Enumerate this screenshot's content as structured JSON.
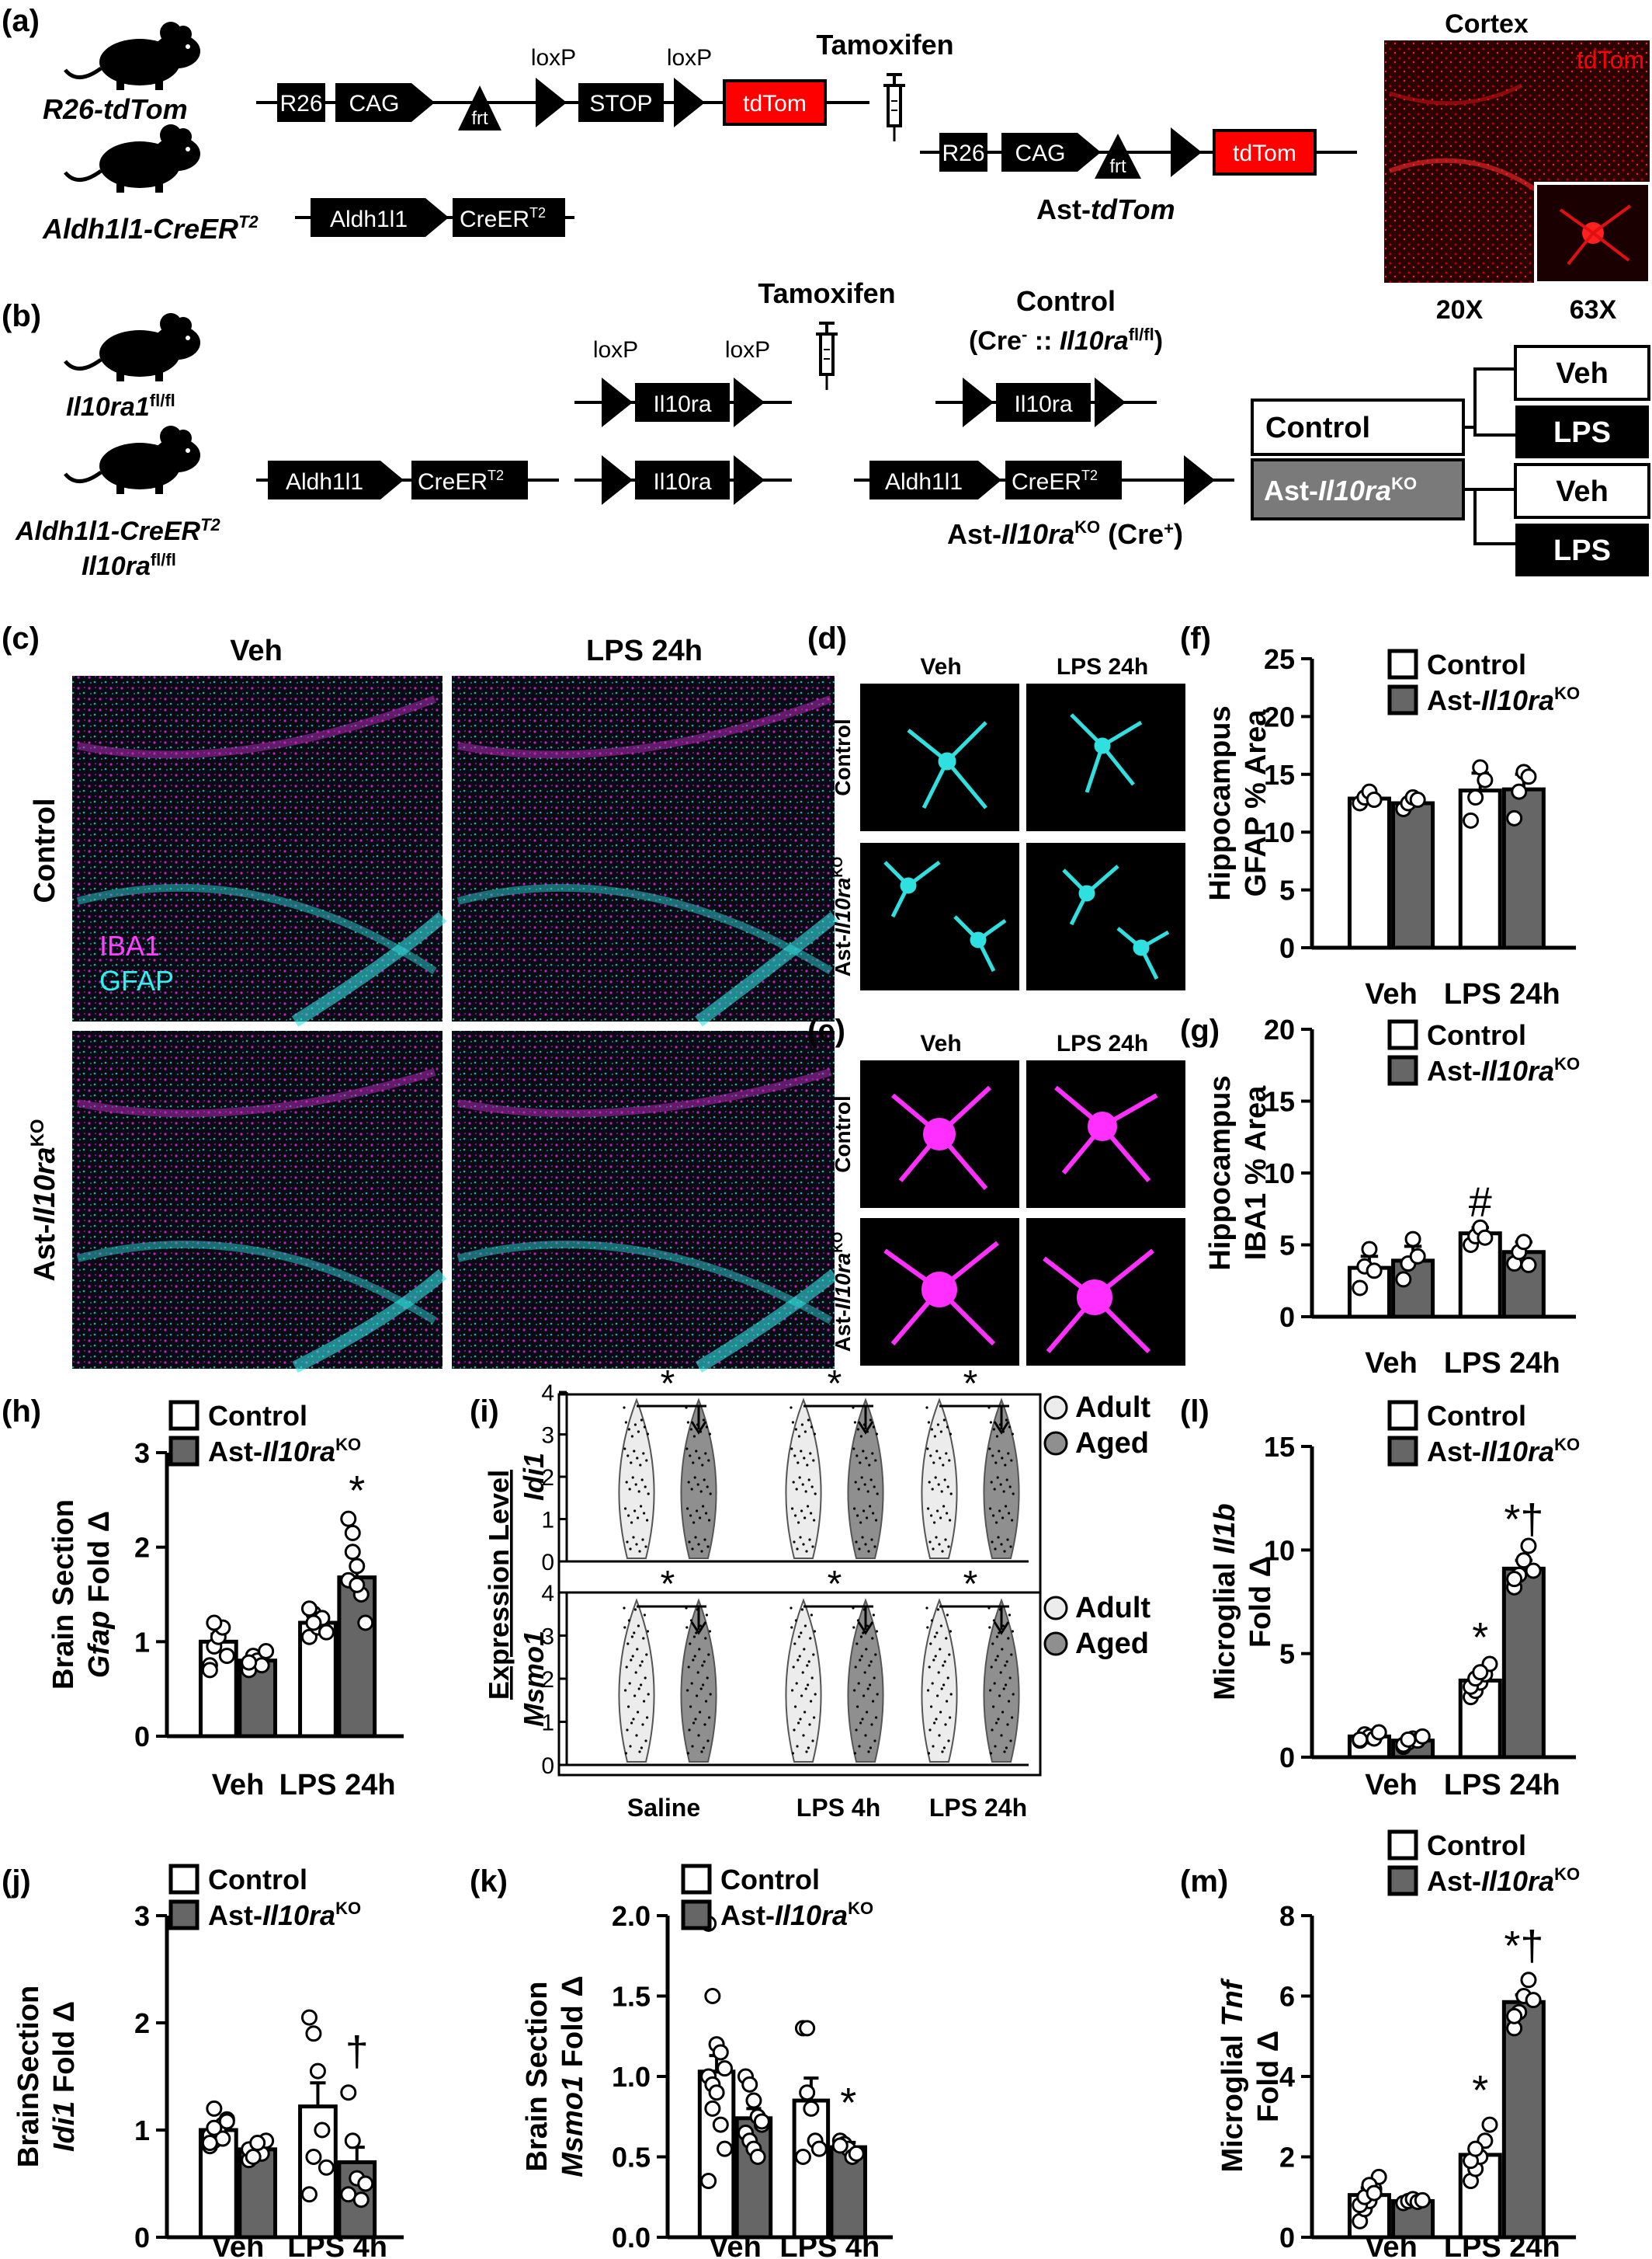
{
  "panel_labels": {
    "a": "(a)",
    "b": "(b)",
    "c": "(c)",
    "d": "(d)",
    "e": "(e)",
    "f": "(f)",
    "g": "(g)",
    "h": "(h)",
    "i": "(i)",
    "j": "(j)",
    "k": "(k)",
    "l": "(l)",
    "m": "(m)"
  },
  "colors": {
    "control_fill": "#ffffff",
    "ko_fill": "#666666",
    "adult_fill": "#ececec",
    "aged_fill": "#8f8f8f",
    "tdtom_red": "#ff0000",
    "gfap": "#19e0e0",
    "iba1": "#ff19ff",
    "cortex_bg": "#2a0000"
  },
  "panel_a": {
    "mouse1": "R26-tdTom",
    "mouse2_base": "Aldh1l1-CreER",
    "mouse2_sup": "T2",
    "boxes": {
      "r26": "R26",
      "cag": "CAG",
      "stop": "STOP",
      "tdtom": "tdTom",
      "aldh": "Aldh1l1",
      "creer": "CreER",
      "creer_sup": "T2"
    },
    "frt": "frt",
    "loxp1": "loxP",
    "loxp2": "loxP",
    "tamoxifen": "Tamoxifen",
    "result_prefix": "Ast-",
    "result_italic": "tdTom",
    "cortex_title": "Cortex",
    "cortex_label": "tdTom",
    "mag1": "20X",
    "mag2": "63X"
  },
  "panel_b": {
    "mouse1_base": "Il10ra1",
    "mouse1_sup": "fl/fl",
    "mouse2_line1_base": "Aldh1l1-CreER",
    "mouse2_line1_sup": "T2",
    "mouse2_line2_base": "Il10ra",
    "mouse2_line2_sup": "fl/fl",
    "aldh": "Aldh1l1",
    "creer": "CreER",
    "creer_sup": "T2",
    "il10ra": "Il10ra",
    "loxp1": "loxP",
    "loxp2": "loxP",
    "tamoxifen": "Tamoxifen",
    "control_title": "Control",
    "control_sub_a": "(Cre",
    "control_sub_minus": "-",
    "control_sub_b": " :: ",
    "control_sub_it": "Il10ra",
    "control_sub_sup": "fl/fl",
    "control_sub_c": ")",
    "ko_prefix": "Ast-",
    "ko_it": "Il10ra",
    "ko_sup": "KO",
    "ko_suffix_a": " (Cre",
    "ko_suffix_plus": "+",
    "ko_suffix_b": ")",
    "group_control": "Control",
    "group_ko_prefix": "Ast-",
    "group_ko_it": "Il10ra",
    "group_ko_sup": "KO",
    "treat": [
      "Veh",
      "LPS",
      "Veh",
      "LPS"
    ]
  },
  "panel_c": {
    "col1": "Veh",
    "col2": "LPS 24h",
    "row1": "Control",
    "row2_prefix": "Ast-",
    "row2_it": "Il10ra",
    "row2_sup": "KO",
    "stain1": "IBA1",
    "stain2": "GFAP"
  },
  "panel_d": {
    "col1": "Veh",
    "col2": "LPS 24h",
    "row1": "Control",
    "row2_prefix": "Ast-",
    "row2_it": "Il10ra",
    "row2_sup": "KO"
  },
  "panel_e": {
    "col1": "Veh",
    "col2": "LPS 24h",
    "row1": "Control",
    "row2_prefix": "Ast-",
    "row2_it": "Il10ra",
    "row2_sup": "KO"
  },
  "legend": {
    "control": "Control",
    "ko_prefix": "Ast-",
    "ko_it": "Il10ra",
    "ko_sup": "KO",
    "adult": "Adult",
    "aged": "Aged"
  },
  "panel_i": {
    "ylabel": "Expression Level",
    "gene1": "Idi1",
    "gene2": "Msmo1",
    "groups": [
      "Saline",
      "LPS 4h",
      "LPS 24h"
    ],
    "star": "*"
  },
  "chart_data": [
    {
      "id": "f",
      "type": "bar",
      "ylabel_line1": "Hippocampus",
      "ylabel_line2": "GFAP % Area",
      "ylim": [
        0,
        25
      ],
      "yticks": [
        "0",
        "5",
        "10",
        "15",
        "20",
        "25"
      ],
      "categories": [
        "Veh",
        "LPS 24h"
      ],
      "series": [
        {
          "name": "Control",
          "values": [
            12.9,
            13.6
          ],
          "sem": [
            0.4,
            1.5
          ]
        },
        {
          "name": "Ast-Il10raKO",
          "values": [
            12.5,
            13.7
          ],
          "sem": [
            0.3,
            1.3
          ]
        }
      ],
      "points": [
        [
          [
            12.5,
            13.0,
            13.5,
            12.8
          ],
          [
            11.0,
            13.0,
            15.6,
            14.5
          ]
        ],
        [
          [
            12.0,
            12.5,
            13.0,
            12.8
          ],
          [
            11.2,
            13.5,
            15.2,
            14.8
          ]
        ]
      ],
      "annotations": []
    },
    {
      "id": "g",
      "type": "bar",
      "ylabel_line1": "Hippocampus",
      "ylabel_line2": "IBA1 % Area",
      "ylim": [
        0,
        20
      ],
      "yticks": [
        "0",
        "5",
        "10",
        "15",
        "20"
      ],
      "categories": [
        "Veh",
        "LPS 24h"
      ],
      "series": [
        {
          "name": "Control",
          "values": [
            3.4,
            5.8
          ],
          "sem": [
            0.8,
            0.4
          ]
        },
        {
          "name": "Ast-Il10raKO",
          "values": [
            3.9,
            4.5
          ],
          "sem": [
            1.0,
            0.7
          ]
        }
      ],
      "points": [
        [
          [
            2.0,
            3.5,
            4.7,
            3.2
          ],
          [
            5.0,
            5.6,
            6.2,
            5.5
          ]
        ],
        [
          [
            2.6,
            3.7,
            5.4,
            4.2
          ],
          [
            3.7,
            4.5,
            5.2,
            3.6
          ]
        ]
      ],
      "annotations": [
        {
          "text": "#",
          "group": 1,
          "series": 0,
          "value": 7.0
        }
      ]
    },
    {
      "id": "h",
      "type": "bar",
      "ylabel_line1": "Brain Section",
      "ylabel_line2_it": "Gfap",
      "ylabel_line2_rest": " Fold Δ",
      "ylim": [
        0,
        3
      ],
      "yticks": [
        "0",
        "1",
        "2",
        "3"
      ],
      "categories": [
        "Veh",
        "LPS 24h"
      ],
      "series": [
        {
          "name": "Control",
          "values": [
            1.0,
            1.2
          ],
          "sem": [
            0.08,
            0.06
          ]
        },
        {
          "name": "Ast-Il10raKO",
          "values": [
            0.8,
            1.68
          ],
          "sem": [
            0.04,
            0.12
          ]
        }
      ],
      "points": [
        [
          [
            0.75,
            0.95,
            1.05,
            1.15,
            0.85,
            0.7,
            1.2
          ],
          [
            1.05,
            1.3,
            1.15,
            1.25,
            1.1,
            1.35,
            1.2
          ]
        ],
        [
          [
            0.7,
            0.85,
            0.8,
            0.75,
            0.9,
            0.78
          ],
          [
            2.3,
            2.15,
            1.8,
            1.5,
            1.2,
            1.65,
            1.95,
            1.6
          ]
        ]
      ],
      "annotations": [
        {
          "text": "*",
          "group": 1,
          "series": 1,
          "value": 2.45
        }
      ]
    },
    {
      "id": "j",
      "type": "bar",
      "ylabel_line1": "BrainSection",
      "ylabel_line2_it": "Idi1",
      "ylabel_line2_rest": " Fold Δ",
      "ylim": [
        0,
        3
      ],
      "yticks": [
        "0",
        "1",
        "2",
        "3"
      ],
      "categories": [
        "Veh",
        "LPS 4h"
      ],
      "series": [
        {
          "name": "Control",
          "values": [
            1.0,
            1.22
          ],
          "sem": [
            0.04,
            0.22
          ]
        },
        {
          "name": "Ast-Il10raKO",
          "values": [
            0.82,
            0.7
          ],
          "sem": [
            0.03,
            0.14
          ]
        }
      ],
      "points": [
        [
          [
            0.85,
            0.9,
            1.0,
            1.05,
            1.1,
            0.95,
            1.2,
            1.0,
            0.92,
            1.08,
            0.88,
            1.02
          ],
          [
            2.05,
            1.9,
            1.55,
            1.0,
            0.65,
            0.4,
            0.75
          ]
        ],
        [
          [
            0.72,
            0.8,
            0.85,
            0.78,
            0.9,
            0.82,
            0.75,
            0.88
          ],
          [
            1.35,
            0.9,
            0.55,
            0.35,
            0.5,
            0.4
          ]
        ]
      ],
      "annotations": [
        {
          "text": "†",
          "group": 1,
          "series": 1,
          "value": 1.6
        }
      ]
    },
    {
      "id": "k",
      "type": "bar",
      "ylabel_line1": "Brain Section",
      "ylabel_line2_it": "Msmo1",
      "ylabel_line2_rest": " Fold Δ",
      "ylim": [
        0,
        2
      ],
      "yticks": [
        "0.0",
        "0.5",
        "1.0",
        "1.5",
        "2.0"
      ],
      "categories": [
        "Veh",
        "LPS 4h"
      ],
      "series": [
        {
          "name": "Control",
          "values": [
            1.03,
            0.85
          ],
          "sem": [
            0.1,
            0.14
          ]
        },
        {
          "name": "Ast-Il10raKO",
          "values": [
            0.74,
            0.56
          ],
          "sem": [
            0.06,
            0.03
          ]
        }
      ],
      "points": [
        [
          [
            1.95,
            1.5,
            1.2,
            1.15,
            1.05,
            1.0,
            0.95,
            0.9,
            0.7,
            0.55,
            0.35,
            0.8
          ],
          [
            1.3,
            1.3,
            0.8,
            0.6,
            0.55,
            0.5,
            0.9
          ]
        ],
        [
          [
            1.0,
            0.95,
            0.85,
            0.75,
            0.7,
            0.65,
            0.6,
            0.55,
            0.5,
            0.72
          ],
          [
            0.6,
            0.58,
            0.55,
            0.5,
            0.52,
            0.57
          ]
        ]
      ],
      "annotations": [
        {
          "text": "*",
          "group": 1,
          "series": 1,
          "value": 0.75
        }
      ]
    },
    {
      "id": "l",
      "type": "bar",
      "ylabel_line1_a": "Microglial ",
      "ylabel_line1_it": "Il1b",
      "ylabel_line2": "Fold Δ",
      "ylim": [
        0,
        15
      ],
      "yticks": [
        "0",
        "5",
        "10",
        "15"
      ],
      "categories": [
        "Veh",
        "LPS 24h"
      ],
      "series": [
        {
          "name": "Control",
          "values": [
            1.0,
            3.7
          ],
          "sem": [
            0.1,
            0.2
          ]
        },
        {
          "name": "Ast-Il10raKO",
          "values": [
            0.8,
            9.1
          ],
          "sem": [
            0.08,
            0.4
          ]
        }
      ],
      "points": [
        [
          [
            0.8,
            1.1,
            1.0,
            0.9,
            1.2,
            0.85
          ],
          [
            2.9,
            3.2,
            3.6,
            4.0,
            4.5,
            3.4,
            3.8,
            4.1
          ]
        ],
        [
          [
            0.5,
            0.7,
            0.9,
            0.8,
            1.0,
            0.6,
            0.85
          ],
          [
            8.2,
            8.8,
            9.5,
            10.2,
            9.0,
            8.6
          ]
        ]
      ],
      "annotations": [
        {
          "text": "*",
          "group": 1,
          "series": 0,
          "value": 5.1
        },
        {
          "text": "*†",
          "group": 1,
          "series": 1,
          "value": 10.8
        }
      ]
    },
    {
      "id": "m",
      "type": "bar",
      "ylabel_line1_a": "Microglial ",
      "ylabel_line1_it": "Tnf",
      "ylabel_line2": "Fold Δ",
      "ylim": [
        0,
        8
      ],
      "yticks": [
        "0",
        "2",
        "4",
        "6",
        "8"
      ],
      "categories": [
        "Veh",
        "LPS 24h"
      ],
      "series": [
        {
          "name": "Control",
          "values": [
            1.05,
            2.05
          ],
          "sem": [
            0.18,
            0.2
          ]
        },
        {
          "name": "Ast-Il10raKO",
          "values": [
            0.9,
            5.85
          ],
          "sem": [
            0.04,
            0.18
          ]
        }
      ],
      "points": [
        [
          [
            0.4,
            0.7,
            0.9,
            1.2,
            1.5,
            0.8,
            1.0,
            1.3,
            1.1
          ],
          [
            1.4,
            1.7,
            2.0,
            2.4,
            2.8,
            1.9,
            2.2
          ]
        ],
        [
          [
            0.85,
            0.9,
            0.95,
            0.88,
            0.92
          ],
          [
            5.2,
            5.6,
            6.0,
            6.4,
            5.9,
            5.5
          ]
        ]
      ],
      "annotations": [
        {
          "text": "*",
          "group": 1,
          "series": 0,
          "value": 3.3
        },
        {
          "text": "*†",
          "group": 1,
          "series": 1,
          "value": 6.9
        }
      ]
    }
  ]
}
